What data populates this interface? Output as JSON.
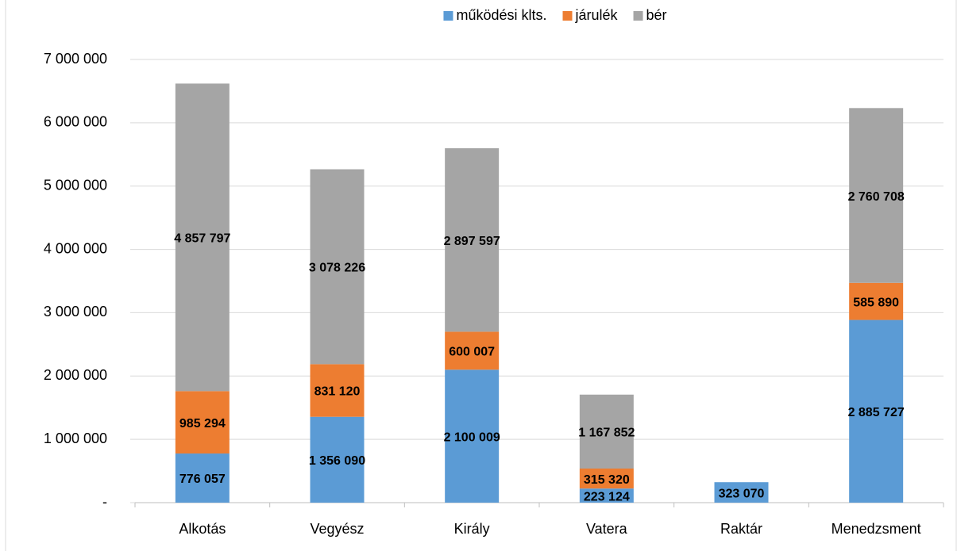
{
  "chart_data": {
    "type": "stacked_bar",
    "categories": [
      "Alkotás",
      "Vegyész",
      "Király",
      "Vatera",
      "Raktár",
      "Menedzsment"
    ],
    "series": [
      {
        "name": "működési klts.",
        "color": "#5b9bd5",
        "values": [
          776057,
          1356090,
          2100009,
          223124,
          323070,
          2885727
        ],
        "value_labels": [
          "776 057",
          "1 356 090",
          "2 100 009",
          "223 124",
          "323 070",
          "2 885 727"
        ]
      },
      {
        "name": "járulék",
        "color": "#ed7d31",
        "values": [
          985294,
          831120,
          600007,
          315320,
          null,
          585890
        ],
        "value_labels": [
          "985 294",
          "831 120",
          "600 007",
          "315 320",
          null,
          "585 890"
        ]
      },
      {
        "name": "bér",
        "color": "#a5a5a5",
        "values": [
          4857797,
          3078226,
          2897597,
          1167852,
          null,
          2760708
        ],
        "value_labels": [
          "4 857 797",
          "3 078 226",
          "2 897 597",
          "1 167 852",
          null,
          "2 760 708"
        ]
      }
    ],
    "ylim": [
      0,
      7000000
    ],
    "yticks": [
      {
        "value": 0,
        "label": "-"
      },
      {
        "value": 1000000,
        "label": "1 000 000"
      },
      {
        "value": 2000000,
        "label": "2 000 000"
      },
      {
        "value": 3000000,
        "label": "3 000 000"
      },
      {
        "value": 4000000,
        "label": "4 000 000"
      },
      {
        "value": 5000000,
        "label": "5 000 000"
      },
      {
        "value": 6000000,
        "label": "6 000 000"
      },
      {
        "value": 7000000,
        "label": "7 000 000"
      }
    ],
    "grid": true,
    "legend": "top"
  }
}
